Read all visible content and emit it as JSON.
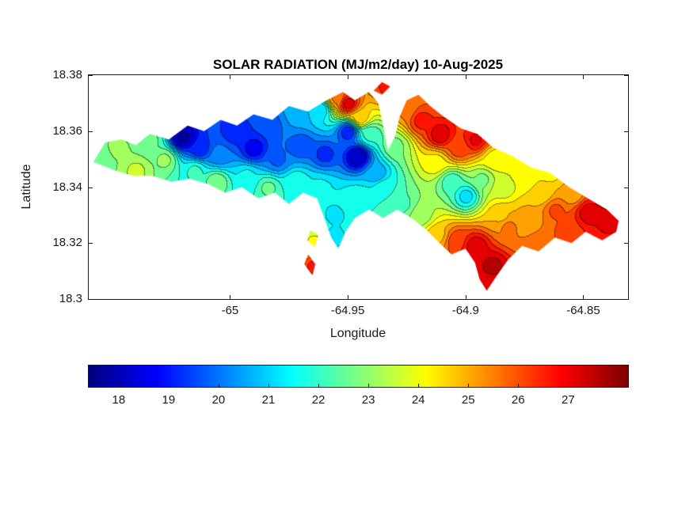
{
  "title": "SOLAR RADIATION (MJ/m2/day) 10-Aug-2025",
  "axes": {
    "xlabel": "Longitude",
    "ylabel": "Latitude",
    "xlim": [
      -65.06,
      -64.831
    ],
    "ylim": [
      18.3,
      18.38
    ],
    "xticks": [
      -65,
      -64.95,
      -64.9,
      -64.85
    ],
    "xtick_labels": [
      "-65",
      "-64.95",
      "-64.9",
      "-64.85"
    ],
    "yticks": [
      18.38,
      18.36,
      18.34,
      18.32,
      18.3
    ],
    "ytick_labels": [
      "18.38",
      "18.36",
      "18.34",
      "18.32",
      "18.3"
    ]
  },
  "colorbar": {
    "vmin": 17.4,
    "vmax": 28.2,
    "ticks": [
      18,
      19,
      20,
      21,
      22,
      23,
      24,
      25,
      26,
      27
    ],
    "tick_labels": [
      "18",
      "19",
      "20",
      "21",
      "22",
      "23",
      "24",
      "25",
      "26",
      "27"
    ],
    "colormap": "jet",
    "orientation": "horizontal"
  },
  "chart_data": {
    "type": "heatmap",
    "subtype": "filled-contour-map",
    "title": "SOLAR RADIATION (MJ/m2/day) 10-Aug-2025",
    "variable": "solar radiation",
    "units": "MJ/m2/day",
    "date": "10-Aug-2025",
    "xlabel": "Longitude",
    "ylabel": "Latitude",
    "xlim": [
      -65.06,
      -64.831
    ],
    "ylim": [
      18.3,
      18.38
    ],
    "value_range": [
      17.4,
      28.2
    ],
    "contour_interval": 0.5,
    "colormap": "jet",
    "island_outline": [
      [
        -65.058,
        18.349
      ],
      [
        -65.053,
        18.356
      ],
      [
        -65.046,
        18.357
      ],
      [
        -65.04,
        18.355
      ],
      [
        -65.034,
        18.359
      ],
      [
        -65.026,
        18.357
      ],
      [
        -65.018,
        18.362
      ],
      [
        -65.011,
        18.36
      ],
      [
        -65.004,
        18.364
      ],
      [
        -64.997,
        18.362
      ],
      [
        -64.99,
        18.366
      ],
      [
        -64.982,
        18.364
      ],
      [
        -64.975,
        18.369
      ],
      [
        -64.967,
        18.367
      ],
      [
        -64.959,
        18.371
      ],
      [
        -64.952,
        18.374
      ],
      [
        -64.947,
        18.371
      ],
      [
        -64.941,
        18.374
      ],
      [
        -64.937,
        18.37
      ],
      [
        -64.935,
        18.362
      ],
      [
        -64.933,
        18.353
      ],
      [
        -64.93,
        18.358
      ],
      [
        -64.928,
        18.365
      ],
      [
        -64.925,
        18.371
      ],
      [
        -64.92,
        18.373
      ],
      [
        -64.915,
        18.369
      ],
      [
        -64.909,
        18.365
      ],
      [
        -64.902,
        18.361
      ],
      [
        -64.895,
        18.359
      ],
      [
        -64.888,
        18.354
      ],
      [
        -64.88,
        18.351
      ],
      [
        -64.872,
        18.347
      ],
      [
        -64.864,
        18.345
      ],
      [
        -64.856,
        18.34
      ],
      [
        -64.848,
        18.336
      ],
      [
        -64.84,
        18.332
      ],
      [
        -64.835,
        18.328
      ],
      [
        -64.836,
        18.324
      ],
      [
        -64.842,
        18.321
      ],
      [
        -64.849,
        18.324
      ],
      [
        -64.855,
        18.32
      ],
      [
        -64.862,
        18.322
      ],
      [
        -64.869,
        18.317
      ],
      [
        -64.876,
        18.319
      ],
      [
        -64.882,
        18.314
      ],
      [
        -64.887,
        18.308
      ],
      [
        -64.891,
        18.303
      ],
      [
        -64.894,
        18.307
      ],
      [
        -64.896,
        18.313
      ],
      [
        -64.9,
        18.318
      ],
      [
        -64.906,
        18.316
      ],
      [
        -64.911,
        18.32
      ],
      [
        -64.917,
        18.325
      ],
      [
        -64.923,
        18.329
      ],
      [
        -64.929,
        18.332
      ],
      [
        -64.935,
        18.329
      ],
      [
        -64.941,
        18.332
      ],
      [
        -64.947,
        18.329
      ],
      [
        -64.951,
        18.324
      ],
      [
        -64.954,
        18.318
      ],
      [
        -64.957,
        18.322
      ],
      [
        -64.96,
        18.329
      ],
      [
        -64.963,
        18.336
      ],
      [
        -64.969,
        18.338
      ],
      [
        -64.975,
        18.334
      ],
      [
        -64.981,
        18.338
      ],
      [
        -64.988,
        18.336
      ],
      [
        -64.995,
        18.34
      ],
      [
        -65.002,
        18.338
      ],
      [
        -65.009,
        18.341
      ],
      [
        -65.017,
        18.343
      ],
      [
        -65.025,
        18.342
      ],
      [
        -65.033,
        18.344
      ],
      [
        -65.041,
        18.344
      ],
      [
        -65.049,
        18.346
      ]
    ],
    "islets": [
      [
        [
          -64.939,
          18.3745
        ],
        [
          -64.9355,
          18.3775
        ],
        [
          -64.932,
          18.376
        ],
        [
          -64.9355,
          18.373
        ]
      ],
      [
        [
          -64.966,
          18.3245
        ],
        [
          -64.9625,
          18.323
        ],
        [
          -64.964,
          18.3185
        ],
        [
          -64.9672,
          18.321
        ]
      ],
      [
        [
          -64.9668,
          18.316
        ],
        [
          -64.9638,
          18.3125
        ],
        [
          -64.965,
          18.3085
        ],
        [
          -64.9685,
          18.3125
        ]
      ]
    ],
    "samples": [
      [
        -65.056,
        18.35,
        22.5
      ],
      [
        -65.048,
        18.354,
        23.0
      ],
      [
        -65.04,
        18.346,
        23.5
      ],
      [
        -65.034,
        18.357,
        22.5
      ],
      [
        -65.028,
        18.35,
        23.0
      ],
      [
        -65.02,
        18.358,
        17.8
      ],
      [
        -65.013,
        18.354,
        19.0
      ],
      [
        -65.015,
        18.346,
        22.0
      ],
      [
        -65.005,
        18.352,
        20.0
      ],
      [
        -65.006,
        18.342,
        22.8
      ],
      [
        -64.998,
        18.36,
        19.0
      ],
      [
        -64.99,
        18.354,
        18.6
      ],
      [
        -64.993,
        18.344,
        21.5
      ],
      [
        -64.984,
        18.362,
        19.5
      ],
      [
        -64.98,
        18.35,
        19.8
      ],
      [
        -64.984,
        18.34,
        22.5
      ],
      [
        -64.972,
        18.366,
        20.5
      ],
      [
        -64.97,
        18.355,
        19.5
      ],
      [
        -64.972,
        18.342,
        21.8
      ],
      [
        -64.962,
        18.368,
        21.0
      ],
      [
        -64.96,
        18.352,
        19.2
      ],
      [
        -64.962,
        18.34,
        21.5
      ],
      [
        -64.946,
        18.351,
        17.9
      ],
      [
        -64.95,
        18.36,
        19.0
      ],
      [
        -64.938,
        18.345,
        20.5
      ],
      [
        -64.946,
        18.336,
        21.8
      ],
      [
        -64.956,
        18.33,
        21.3
      ],
      [
        -64.957,
        18.322,
        21.0
      ],
      [
        -64.964,
        18.321,
        24.0
      ],
      [
        -64.9645,
        18.312,
        26.5
      ],
      [
        -64.955,
        18.372,
        25.5
      ],
      [
        -64.95,
        18.37,
        27.2
      ],
      [
        -64.945,
        18.365,
        24.8
      ],
      [
        -64.941,
        18.359,
        22.0
      ],
      [
        -64.93,
        18.355,
        22.8
      ],
      [
        -64.934,
        18.376,
        26.5
      ],
      [
        -64.926,
        18.368,
        25.5
      ],
      [
        -64.919,
        18.364,
        26.6
      ],
      [
        -64.911,
        18.359,
        27.3
      ],
      [
        -64.903,
        18.354,
        26.2
      ],
      [
        -64.896,
        18.357,
        27.0
      ],
      [
        -64.913,
        18.349,
        24.2
      ],
      [
        -64.906,
        18.342,
        22.0
      ],
      [
        -64.9,
        18.337,
        21.2
      ],
      [
        -64.893,
        18.343,
        22.8
      ],
      [
        -64.888,
        18.35,
        24.2
      ],
      [
        -64.879,
        18.352,
        24.0
      ],
      [
        -64.935,
        18.34,
        21.8
      ],
      [
        -64.927,
        18.334,
        22.3
      ],
      [
        -64.919,
        18.33,
        23.2
      ],
      [
        -64.884,
        18.34,
        23.6
      ],
      [
        -64.876,
        18.344,
        24.0
      ],
      [
        -64.868,
        18.338,
        24.5
      ],
      [
        -64.874,
        18.33,
        25.0
      ],
      [
        -64.882,
        18.326,
        25.5
      ],
      [
        -64.862,
        18.332,
        26.0
      ],
      [
        -64.855,
        18.338,
        25.0
      ],
      [
        -64.848,
        18.331,
        27.2
      ],
      [
        -64.84,
        18.328,
        27.0
      ],
      [
        -64.856,
        18.324,
        26.2
      ],
      [
        -64.868,
        18.318,
        25.8
      ],
      [
        -64.889,
        18.312,
        27.6
      ],
      [
        -64.896,
        18.319,
        27.3
      ],
      [
        -64.904,
        18.321,
        26.3
      ],
      [
        -64.912,
        18.323,
        24.8
      ],
      [
        -64.891,
        18.305,
        27.0
      ],
      [
        -64.885,
        18.33,
        24.8
      ],
      [
        -64.864,
        18.346,
        24.2
      ]
    ]
  }
}
